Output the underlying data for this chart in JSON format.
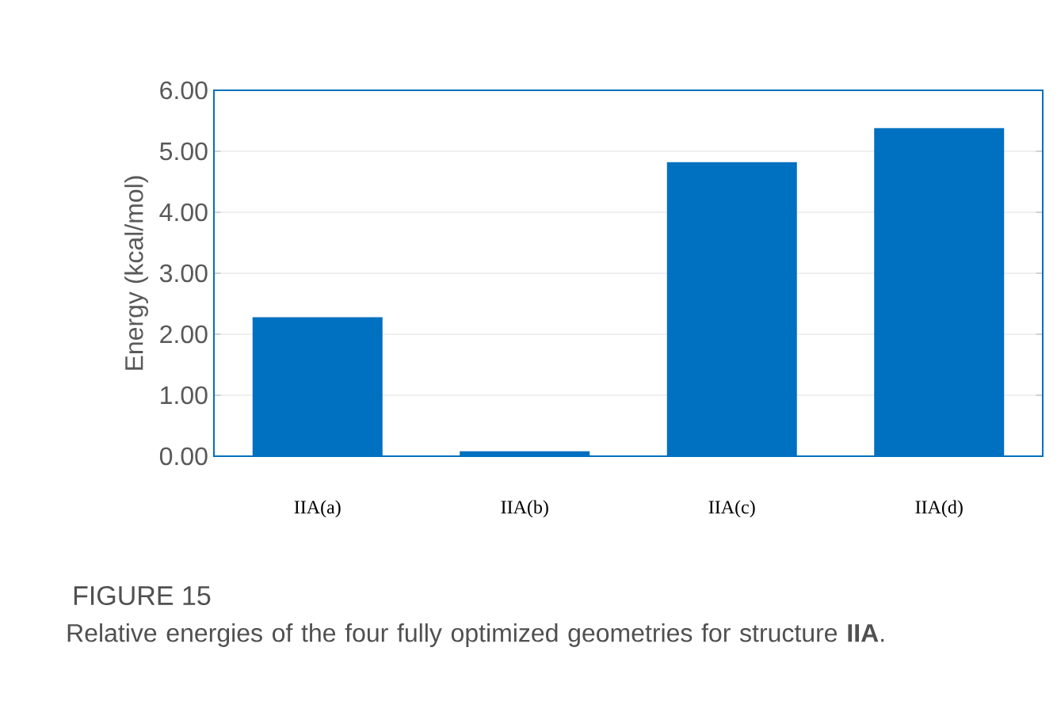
{
  "chart_data": {
    "type": "bar",
    "title": "FIGURE 15",
    "annotations": [
      "Relative energies of the four fully optimized geometries for structure **IIA**."
    ],
    "ylabel": "Energy (kcal/mol)",
    "categories": [
      "IIA(a)",
      "IIA(b)",
      "IIA(c)",
      "IIA(d)"
    ],
    "values": [
      2.28,
      0.08,
      4.82,
      5.38
    ],
    "color": "#0070c0",
    "ylim": [
      0,
      6
    ],
    "yticks": [
      {
        "value": 0,
        "label": "0.00"
      },
      {
        "value": 1,
        "label": "1.00"
      },
      {
        "value": 2,
        "label": "2.00"
      },
      {
        "value": 3,
        "label": "3.00"
      },
      {
        "value": 4,
        "label": "4.00"
      },
      {
        "value": 5,
        "label": "5.00"
      },
      {
        "value": 6,
        "label": "6.00"
      }
    ],
    "grid": "y"
  }
}
